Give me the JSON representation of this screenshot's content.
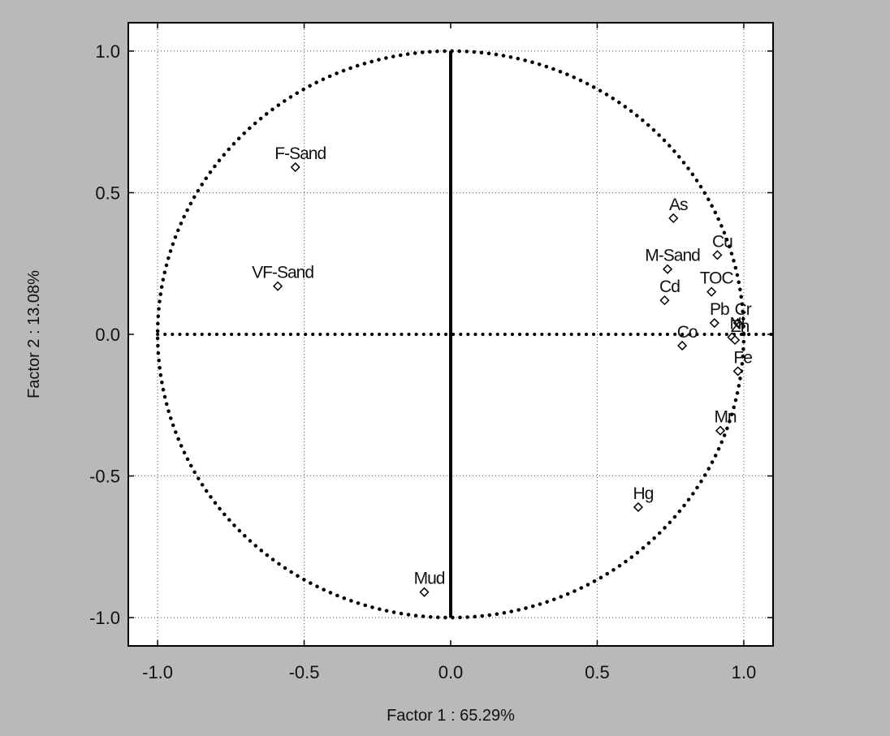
{
  "chart_data": {
    "type": "scatter",
    "title": "",
    "xlabel": "Factor 1 : 65.29%",
    "ylabel": "Factor 2 : 13.08%",
    "xlim": [
      -1.1,
      1.1
    ],
    "ylim": [
      -1.1,
      1.1
    ],
    "grid": true,
    "x_ticks": [
      {
        "value": -1.0,
        "label": "-1.0"
      },
      {
        "value": -0.5,
        "label": "-0.5"
      },
      {
        "value": 0.0,
        "label": "0.0"
      },
      {
        "value": 0.5,
        "label": "0.5"
      },
      {
        "value": 1.0,
        "label": "1.0"
      }
    ],
    "y_ticks": [
      {
        "value": 1.0,
        "label": "1.0"
      },
      {
        "value": 0.5,
        "label": "0.5"
      },
      {
        "value": 0.0,
        "label": "0.0"
      },
      {
        "value": -0.5,
        "label": "-0.5"
      },
      {
        "value": -1.0,
        "label": "-1.0"
      }
    ],
    "unit_circle": true,
    "points": [
      {
        "label": "F-Sand",
        "x": -0.53,
        "y": 0.59
      },
      {
        "label": "VF-Sand",
        "x": -0.59,
        "y": 0.17
      },
      {
        "label": "As",
        "x": 0.76,
        "y": 0.41
      },
      {
        "label": "Cu",
        "x": 0.91,
        "y": 0.28
      },
      {
        "label": "M-Sand",
        "x": 0.74,
        "y": 0.23
      },
      {
        "label": "TOC",
        "x": 0.89,
        "y": 0.15
      },
      {
        "label": "Cd",
        "x": 0.73,
        "y": 0.12
      },
      {
        "label": "Pb",
        "x": 0.9,
        "y": 0.04
      },
      {
        "label": "Cr",
        "x": 0.98,
        "y": 0.04
      },
      {
        "label": "Ni",
        "x": 0.96,
        "y": -0.01
      },
      {
        "label": "Zn",
        "x": 0.97,
        "y": -0.02
      },
      {
        "label": "Co",
        "x": 0.79,
        "y": -0.04
      },
      {
        "label": "Fe",
        "x": 0.98,
        "y": -0.13
      },
      {
        "label": "Mn",
        "x": 0.92,
        "y": -0.34
      },
      {
        "label": "Hg",
        "x": 0.64,
        "y": -0.61
      },
      {
        "label": "Mud",
        "x": -0.09,
        "y": -0.91
      }
    ]
  }
}
